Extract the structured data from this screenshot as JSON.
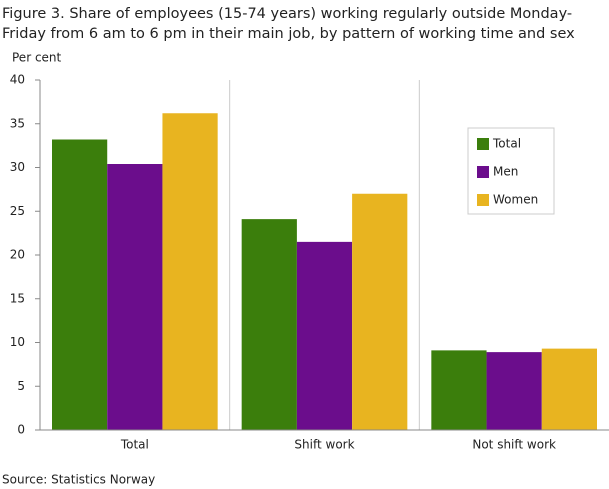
{
  "chart_data": {
    "type": "bar",
    "title": "Figure 3. Share of employees (15-74 years) working regularly outside Monday-Friday from 6 am to 6 pm in their main job, by pattern of working time and sex",
    "y_label": "Per cent",
    "source": "Source: Statistics Norway",
    "categories": [
      "Total",
      "Shift work",
      "Not shift work"
    ],
    "series": [
      {
        "name": "Total",
        "color": "#3b7e0c",
        "values": [
          33.2,
          24.1,
          9.1
        ]
      },
      {
        "name": "Men",
        "color": "#6b0d8c",
        "values": [
          30.4,
          21.5,
          8.9
        ]
      },
      {
        "name": "Women",
        "color": "#e8b420",
        "values": [
          36.2,
          27.0,
          9.3
        ]
      }
    ],
    "ylim": [
      0,
      40
    ],
    "yticks": [
      0,
      5,
      10,
      15,
      20,
      25,
      30,
      35,
      40
    ],
    "legend": "upper right"
  }
}
